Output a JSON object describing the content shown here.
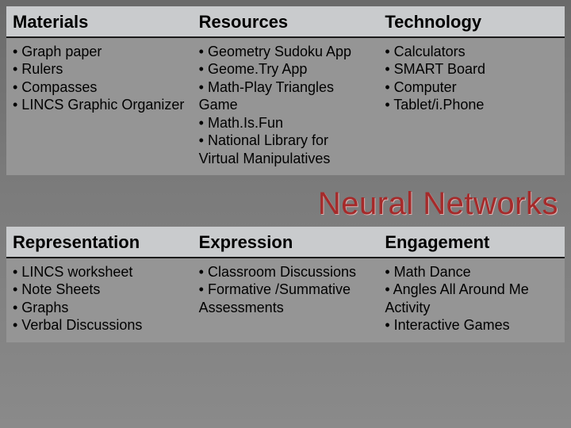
{
  "colors": {
    "background_top": "#6a6a6a",
    "background_bottom": "#8a8a8a",
    "header_bg": "#c9cbcd",
    "cell_bg": "#959595",
    "header_border": "#1a1a1a",
    "text": "#000000",
    "heading_color": "#a52a2a",
    "heading_shadow": "#d9b0b0"
  },
  "typography": {
    "font_family": "Arial",
    "header_fontsize": 22,
    "cell_fontsize": 18,
    "heading_fontsize": 40
  },
  "tables": [
    {
      "columns": [
        "Materials",
        "Resources",
        "Technology"
      ],
      "rows": [
        [
          [
            "• Graph paper",
            "• Rulers",
            "• Compasses",
            "• LINCS Graphic Organizer"
          ],
          [
            "• Geometry Sudoku App",
            "• Geome.Try App",
            "• Math-Play Triangles Game",
            "• Math.Is.Fun",
            "• National Library for Virtual Manipulatives"
          ],
          [
            "• Calculators",
            "• SMART Board",
            "• Computer",
            "• Tablet/i.Phone"
          ]
        ]
      ]
    },
    {
      "columns": [
        "Representation",
        "Expression",
        "Engagement"
      ],
      "rows": [
        [
          [
            "• LINCS worksheet",
            "• Note Sheets",
            "• Graphs",
            "• Verbal Discussions"
          ],
          [
            "• Classroom Discussions",
            "• Formative /Summative Assessments"
          ],
          [
            "• Math Dance",
            "• Angles All Around Me Activity",
            "• Interactive Games"
          ]
        ]
      ]
    }
  ],
  "section_heading": "Neural Networks"
}
